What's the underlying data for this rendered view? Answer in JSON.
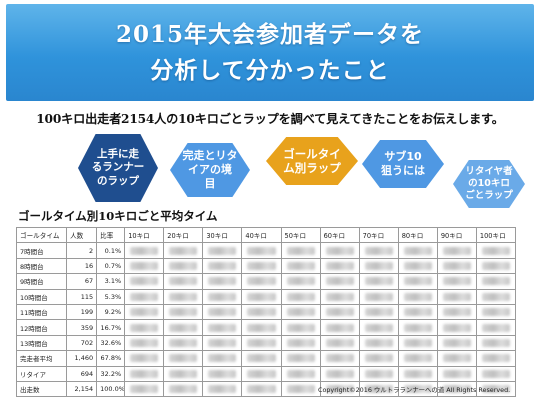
{
  "banner": {
    "title_line1": "2015年大会参加者データを",
    "title_line2": "分析して分かったこと"
  },
  "subtitle": "100キロ出走者2154人の10キロごとラップを調べて見えてきたことをお伝えします。",
  "hexagons": [
    {
      "label": "上手に走\nるランナー\nのラップ",
      "color": "#1f4e8f"
    },
    {
      "label": "完走とリタ\nイアの境\n目",
      "color": "#4f98e3"
    },
    {
      "label": "ゴールタイ\nム別ラップ",
      "color": "#e8a21c"
    },
    {
      "label": "サブ10\n狙うには",
      "color": "#4f98e3"
    },
    {
      "label": "リタイヤ者\nの10キロ\nごとラップ",
      "color": "#6aaae8"
    }
  ],
  "section_title": "ゴールタイム別10キロごと平均タイム",
  "table": {
    "headers": [
      "ゴールタイム",
      "人数",
      "比率",
      "10キロ",
      "20キロ",
      "30キロ",
      "40キロ",
      "50キロ",
      "60キロ",
      "70キロ",
      "80キロ",
      "90キロ",
      "100キロ"
    ],
    "rows": [
      {
        "label": "7時間台",
        "count": "2",
        "ratio": "0.1%"
      },
      {
        "label": "8時間台",
        "count": "16",
        "ratio": "0.7%"
      },
      {
        "label": "9時間台",
        "count": "67",
        "ratio": "3.1%"
      },
      {
        "label": "10時間台",
        "count": "115",
        "ratio": "5.3%"
      },
      {
        "label": "11時間台",
        "count": "199",
        "ratio": "9.2%"
      },
      {
        "label": "12時間台",
        "count": "359",
        "ratio": "16.7%"
      },
      {
        "label": "13時間台",
        "count": "702",
        "ratio": "32.6%"
      },
      {
        "label": "完走者平均",
        "count": "1,460",
        "ratio": "67.8%"
      },
      {
        "label": "リタイア",
        "count": "694",
        "ratio": "32.2%"
      },
      {
        "label": "出走数",
        "count": "2,154",
        "ratio": "100.0%"
      }
    ]
  },
  "copyright": "Copyright©2016 ウルトラランナーへの道 All Rights Reserved."
}
